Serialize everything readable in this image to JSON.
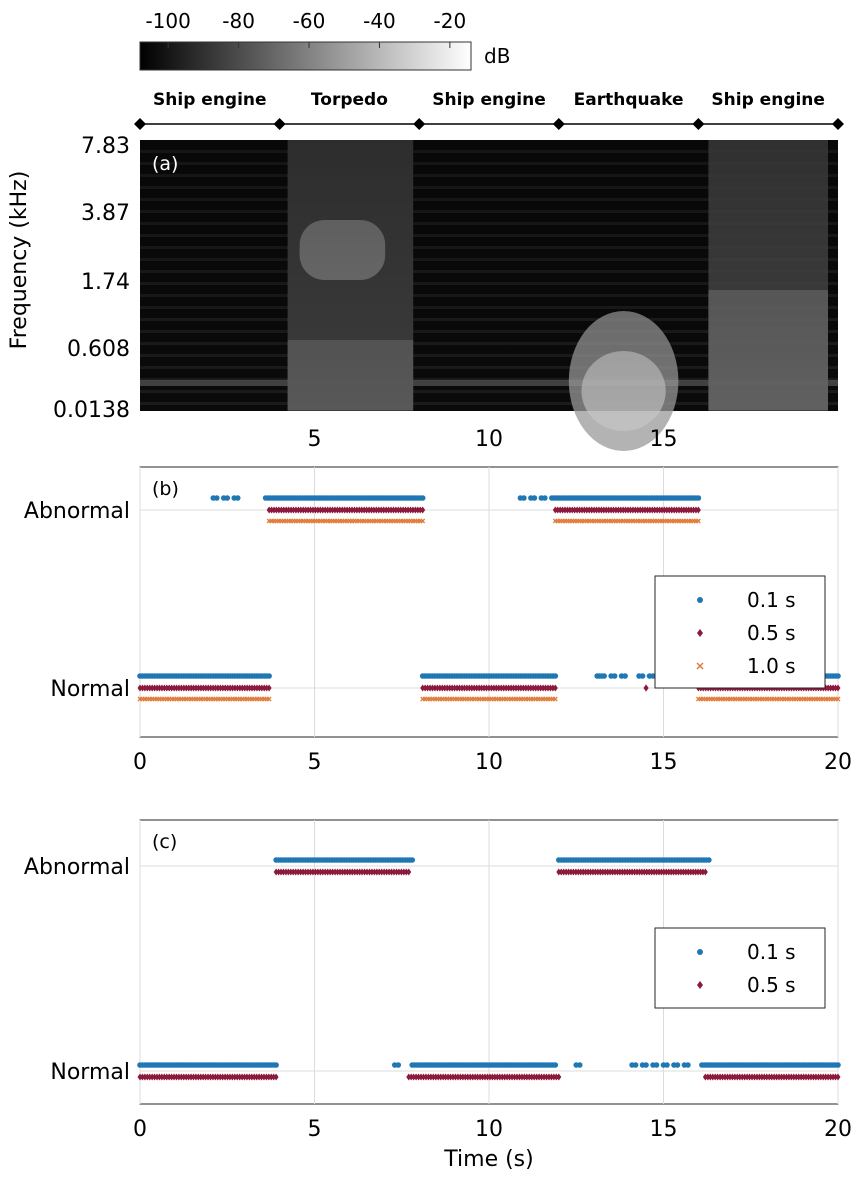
{
  "colorbar": {
    "ticks": [
      "-100",
      "-80",
      "-60",
      "-40",
      "-20"
    ],
    "tick_values": [
      -100,
      -80,
      -60,
      -40,
      -20
    ],
    "range": [
      -108,
      -14
    ],
    "unit": "dB"
  },
  "events": {
    "labels": [
      "Ship engine",
      "Torpedo",
      "Ship engine",
      "Earthquake",
      "Ship engine"
    ],
    "boundaries": [
      0,
      4,
      8,
      12,
      16,
      20
    ]
  },
  "chart_data": [
    {
      "id": "a",
      "panel_label": "(a)",
      "type": "heatmap",
      "ylabel": "Frequency (kHz)",
      "yticks": [
        "7.83",
        "3.87",
        "1.74",
        "0.608",
        "0.0138"
      ],
      "xticks": [
        "5",
        "10",
        "15"
      ],
      "xtick_values": [
        5,
        10,
        15
      ],
      "xlim": [
        0,
        20
      ],
      "segments": [
        {
          "label": "Ship engine",
          "x": [
            0,
            4
          ],
          "level": "low"
        },
        {
          "label": "Torpedo",
          "x": [
            4,
            8
          ],
          "level": "high"
        },
        {
          "label": "Ship engine",
          "x": [
            8,
            12
          ],
          "level": "low"
        },
        {
          "label": "Earthquake",
          "x": [
            12,
            16
          ],
          "level": "high-low-frequency"
        },
        {
          "label": "Ship engine",
          "x": [
            16,
            20
          ],
          "level": "medium"
        }
      ]
    },
    {
      "id": "b",
      "panel_label": "(b)",
      "type": "scatter",
      "categories": [
        "Normal",
        "Abnormal"
      ],
      "xticks": [
        "0",
        "5",
        "10",
        "15",
        "20"
      ],
      "xtick_values": [
        0,
        5,
        10,
        15,
        20
      ],
      "xlim": [
        0,
        20
      ],
      "grid": true,
      "legend_position": "right",
      "series": [
        {
          "name": "0.1 s",
          "marker": "dot",
          "color": "#1f77b4",
          "runs": [
            {
              "state": "Normal",
              "from": 0,
              "to": 3.7
            },
            {
              "state": "Abnormal",
              "from": 2.1,
              "to": 2.2
            },
            {
              "state": "Abnormal",
              "from": 2.4,
              "to": 2.5
            },
            {
              "state": "Abnormal",
              "from": 2.7,
              "to": 2.8
            },
            {
              "state": "Abnormal",
              "from": 3.6,
              "to": 8.1
            },
            {
              "state": "Normal",
              "from": 8.1,
              "to": 11.9
            },
            {
              "state": "Abnormal",
              "from": 10.9,
              "to": 11.0
            },
            {
              "state": "Abnormal",
              "from": 11.2,
              "to": 11.3
            },
            {
              "state": "Abnormal",
              "from": 11.5,
              "to": 11.6
            },
            {
              "state": "Abnormal",
              "from": 11.8,
              "to": 16.0
            },
            {
              "state": "Normal",
              "from": 13.1,
              "to": 13.3
            },
            {
              "state": "Normal",
              "from": 13.5,
              "to": 13.6
            },
            {
              "state": "Normal",
              "from": 13.8,
              "to": 13.9
            },
            {
              "state": "Normal",
              "from": 14.3,
              "to": 14.4
            },
            {
              "state": "Normal",
              "from": 14.6,
              "to": 14.7
            },
            {
              "state": "Normal",
              "from": 16.0,
              "to": 20.0
            }
          ]
        },
        {
          "name": "0.5 s",
          "marker": "star",
          "color": "#8b1a3c",
          "runs": [
            {
              "state": "Normal",
              "from": 0,
              "to": 3.7
            },
            {
              "state": "Abnormal",
              "from": 3.7,
              "to": 8.1
            },
            {
              "state": "Normal",
              "from": 8.1,
              "to": 11.9
            },
            {
              "state": "Abnormal",
              "from": 11.9,
              "to": 16.0
            },
            {
              "state": "Normal",
              "from": 14.5,
              "to": 14.5
            },
            {
              "state": "Normal",
              "from": 16.0,
              "to": 20.0
            }
          ]
        },
        {
          "name": "1.0 s",
          "marker": "x",
          "color": "#e07b39",
          "runs": [
            {
              "state": "Normal",
              "from": 0,
              "to": 3.7
            },
            {
              "state": "Abnormal",
              "from": 3.7,
              "to": 8.1
            },
            {
              "state": "Normal",
              "from": 8.1,
              "to": 11.9
            },
            {
              "state": "Abnormal",
              "from": 11.9,
              "to": 16.0
            },
            {
              "state": "Normal",
              "from": 16.0,
              "to": 20.0
            }
          ]
        }
      ]
    },
    {
      "id": "c",
      "panel_label": "(c)",
      "type": "scatter",
      "categories": [
        "Normal",
        "Abnormal"
      ],
      "xticks": [
        "0",
        "5",
        "10",
        "15",
        "20"
      ],
      "xtick_values": [
        0,
        5,
        10,
        15,
        20
      ],
      "xlim": [
        0,
        20
      ],
      "xlabel": "Time (s)",
      "grid": true,
      "legend_position": "right",
      "series": [
        {
          "name": "0.1 s",
          "marker": "dot",
          "color": "#1f77b4",
          "runs": [
            {
              "state": "Normal",
              "from": 0,
              "to": 3.9
            },
            {
              "state": "Abnormal",
              "from": 3.9,
              "to": 7.8
            },
            {
              "state": "Normal",
              "from": 7.3,
              "to": 7.4
            },
            {
              "state": "Normal",
              "from": 7.8,
              "to": 11.9
            },
            {
              "state": "Normal",
              "from": 12.5,
              "to": 12.6
            },
            {
              "state": "Abnormal",
              "from": 12.0,
              "to": 16.3
            },
            {
              "state": "Normal",
              "from": 14.1,
              "to": 14.2
            },
            {
              "state": "Normal",
              "from": 14.4,
              "to": 14.5
            },
            {
              "state": "Normal",
              "from": 14.7,
              "to": 14.8
            },
            {
              "state": "Normal",
              "from": 15.0,
              "to": 15.1
            },
            {
              "state": "Normal",
              "from": 15.3,
              "to": 15.4
            },
            {
              "state": "Normal",
              "from": 15.6,
              "to": 15.7
            },
            {
              "state": "Normal",
              "from": 16.1,
              "to": 20.0
            }
          ]
        },
        {
          "name": "0.5 s",
          "marker": "star",
          "color": "#8b1a3c",
          "runs": [
            {
              "state": "Normal",
              "from": 0,
              "to": 3.9
            },
            {
              "state": "Abnormal",
              "from": 3.9,
              "to": 7.7
            },
            {
              "state": "Normal",
              "from": 7.7,
              "to": 12.0
            },
            {
              "state": "Abnormal",
              "from": 12.0,
              "to": 16.2
            },
            {
              "state": "Normal",
              "from": 16.2,
              "to": 20.0
            }
          ]
        }
      ]
    }
  ]
}
